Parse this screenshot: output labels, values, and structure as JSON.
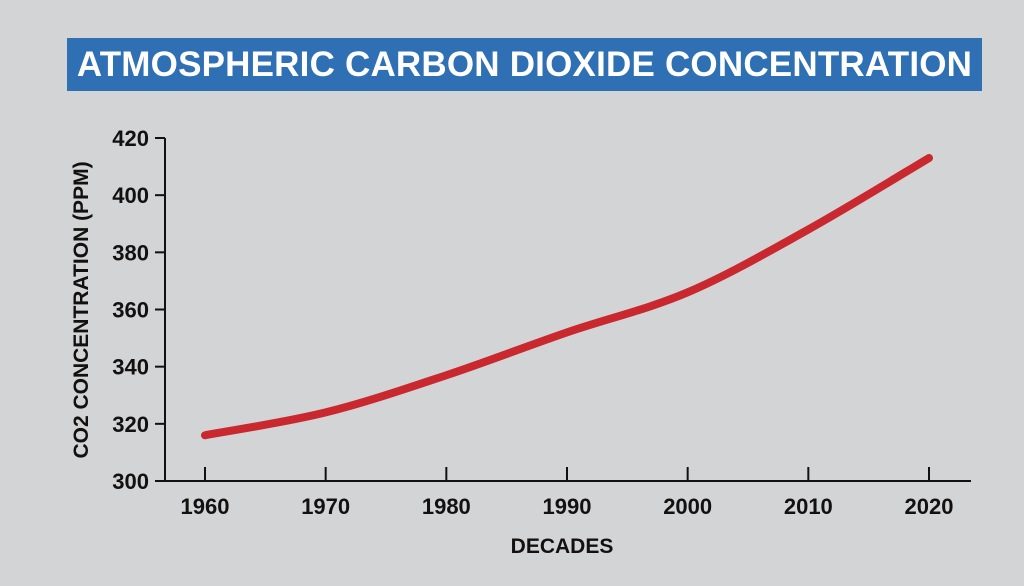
{
  "chart_data": {
    "type": "line",
    "title": "ATMOSPHERIC CARBON DIOXIDE CONCENTRATION",
    "xlabel": "DECADES",
    "ylabel": "CO2 CONCENTRATION (PPM)",
    "xlim": [
      1960,
      2020
    ],
    "ylim": [
      300,
      420
    ],
    "xticks": [
      1960,
      1970,
      1980,
      1990,
      2000,
      2010,
      2020
    ],
    "yticks": [
      300,
      320,
      340,
      360,
      380,
      400,
      420
    ],
    "grid": false,
    "legend": "none",
    "series": [
      {
        "color": "#c8282e",
        "x": [
          1960,
          1970,
          1980,
          1990,
          2000,
          2010,
          2020
        ],
        "y": [
          316,
          324,
          337,
          352,
          366,
          388,
          413
        ]
      }
    ]
  }
}
